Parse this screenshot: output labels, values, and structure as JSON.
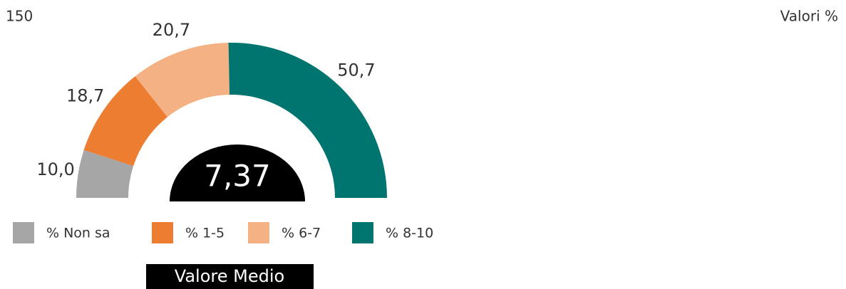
{
  "chart_data": {
    "type": "half-donut",
    "corner_label": "150",
    "subtitle": "Valori %",
    "categories": [
      "% Non sa",
      "% 1-5",
      "% 6-7",
      "% 8-10"
    ],
    "values": [
      10.0,
      18.7,
      20.7,
      50.7
    ],
    "value_labels": [
      "10,0",
      "18,7",
      "20,7",
      "50,7"
    ],
    "colors": [
      "#a6a6a6",
      "#ed7d31",
      "#f4b183",
      "#00756f"
    ],
    "center": {
      "value": 7.37,
      "label": "7,37"
    },
    "center_caption": "Valore Medio",
    "legend": "bottom"
  }
}
